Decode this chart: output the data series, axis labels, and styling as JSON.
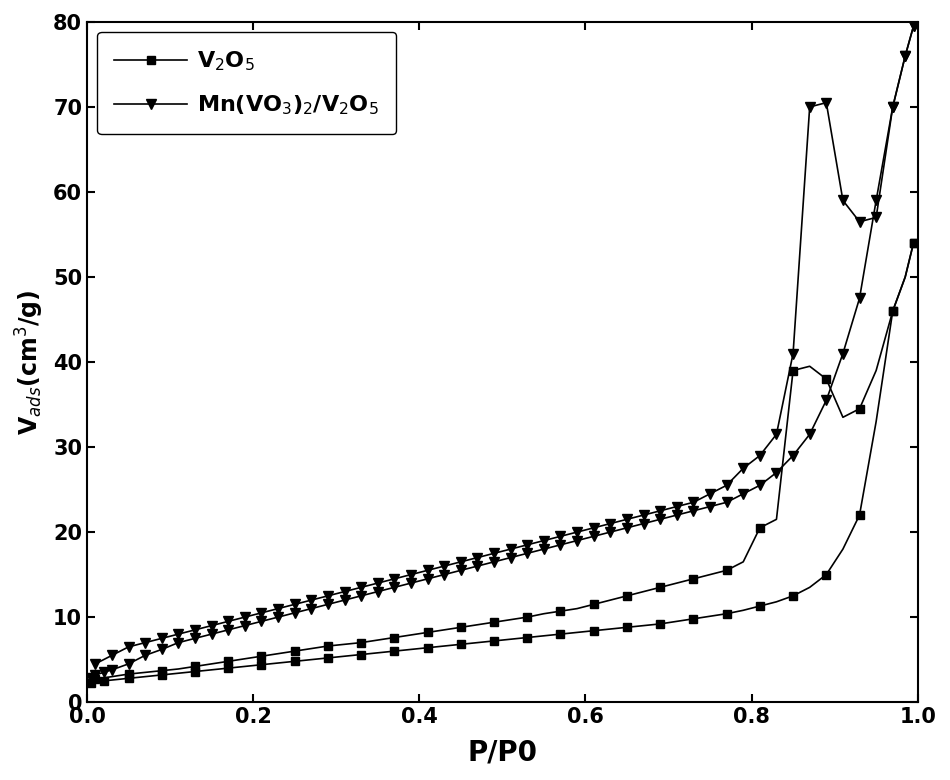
{
  "xlabel": "P/P0",
  "ylabel": "V$_{ads}$(cm$^3$/g)",
  "xlim": [
    0.0,
    1.0
  ],
  "ylim": [
    0,
    80
  ],
  "yticks": [
    0,
    10,
    20,
    30,
    40,
    50,
    60,
    70,
    80
  ],
  "xticks": [
    0.0,
    0.2,
    0.4,
    0.6,
    0.8,
    1.0
  ],
  "legend1_label": "V$_2$O$_5$",
  "legend2_label": "Mn(VO$_3$)$_2$/V$_2$O$_5$",
  "line_color": "black",
  "marker1": "s",
  "marker2": "v",
  "figsize": [
    9.5,
    7.8
  ],
  "dpi": 100,
  "v2o5_ads_x": [
    0.005,
    0.01,
    0.02,
    0.03,
    0.05,
    0.07,
    0.09,
    0.11,
    0.13,
    0.15,
    0.17,
    0.19,
    0.21,
    0.23,
    0.25,
    0.27,
    0.29,
    0.31,
    0.33,
    0.35,
    0.37,
    0.39,
    0.41,
    0.43,
    0.45,
    0.47,
    0.49,
    0.51,
    0.53,
    0.55,
    0.57,
    0.59,
    0.61,
    0.63,
    0.65,
    0.67,
    0.69,
    0.71,
    0.73,
    0.75,
    0.77,
    0.79,
    0.81,
    0.83,
    0.85,
    0.87,
    0.89,
    0.91,
    0.93,
    0.95,
    0.97,
    0.985,
    0.995
  ],
  "v2o5_ads_y": [
    2.2,
    2.4,
    2.5,
    2.6,
    2.8,
    3.0,
    3.2,
    3.4,
    3.6,
    3.8,
    4.0,
    4.2,
    4.4,
    4.6,
    4.8,
    5.0,
    5.2,
    5.4,
    5.6,
    5.8,
    6.0,
    6.2,
    6.4,
    6.6,
    6.8,
    7.0,
    7.2,
    7.4,
    7.6,
    7.8,
    8.0,
    8.2,
    8.4,
    8.6,
    8.8,
    9.0,
    9.2,
    9.5,
    9.8,
    10.1,
    10.4,
    10.8,
    11.3,
    11.8,
    12.5,
    13.5,
    15.0,
    18.0,
    22.0,
    33.0,
    46.0,
    50.0,
    54.0
  ],
  "v2o5_des_x": [
    0.995,
    0.985,
    0.97,
    0.95,
    0.93,
    0.91,
    0.89,
    0.87,
    0.85,
    0.83,
    0.81,
    0.79,
    0.77,
    0.75,
    0.73,
    0.71,
    0.69,
    0.67,
    0.65,
    0.63,
    0.61,
    0.59,
    0.57,
    0.55,
    0.53,
    0.51,
    0.49,
    0.47,
    0.45,
    0.43,
    0.41,
    0.39,
    0.37,
    0.35,
    0.33,
    0.31,
    0.29,
    0.27,
    0.25,
    0.23,
    0.21,
    0.19,
    0.17,
    0.15,
    0.13,
    0.11,
    0.09,
    0.07,
    0.05,
    0.03,
    0.01
  ],
  "v2o5_des_y": [
    54.0,
    50.0,
    46.0,
    39.0,
    34.5,
    33.5,
    38.0,
    39.5,
    39.0,
    21.5,
    20.5,
    16.5,
    15.5,
    15.0,
    14.5,
    14.0,
    13.5,
    13.0,
    12.5,
    12.0,
    11.5,
    11.0,
    10.7,
    10.4,
    10.0,
    9.7,
    9.4,
    9.1,
    8.8,
    8.5,
    8.2,
    7.9,
    7.6,
    7.3,
    7.0,
    6.8,
    6.6,
    6.3,
    6.0,
    5.7,
    5.4,
    5.1,
    4.8,
    4.5,
    4.2,
    3.9,
    3.7,
    3.5,
    3.3,
    3.0,
    2.7
  ],
  "mn_ads_x": [
    0.005,
    0.01,
    0.02,
    0.03,
    0.05,
    0.07,
    0.09,
    0.11,
    0.13,
    0.15,
    0.17,
    0.19,
    0.21,
    0.23,
    0.25,
    0.27,
    0.29,
    0.31,
    0.33,
    0.35,
    0.37,
    0.39,
    0.41,
    0.43,
    0.45,
    0.47,
    0.49,
    0.51,
    0.53,
    0.55,
    0.57,
    0.59,
    0.61,
    0.63,
    0.65,
    0.67,
    0.69,
    0.71,
    0.73,
    0.75,
    0.77,
    0.79,
    0.81,
    0.83,
    0.85,
    0.87,
    0.89,
    0.91,
    0.93,
    0.95,
    0.97,
    0.985,
    0.995
  ],
  "mn_ads_y": [
    2.8,
    3.2,
    3.5,
    3.8,
    4.5,
    5.5,
    6.2,
    7.0,
    7.5,
    8.0,
    8.5,
    9.0,
    9.5,
    10.0,
    10.5,
    11.0,
    11.5,
    12.0,
    12.5,
    13.0,
    13.5,
    14.0,
    14.5,
    15.0,
    15.5,
    16.0,
    16.5,
    17.0,
    17.5,
    18.0,
    18.5,
    19.0,
    19.5,
    20.0,
    20.5,
    21.0,
    21.5,
    22.0,
    22.5,
    23.0,
    23.5,
    24.5,
    25.5,
    27.0,
    29.0,
    31.5,
    35.5,
    41.0,
    47.5,
    59.0,
    70.0,
    76.0,
    79.5
  ],
  "mn_des_x": [
    0.995,
    0.985,
    0.97,
    0.95,
    0.93,
    0.91,
    0.89,
    0.87,
    0.85,
    0.83,
    0.81,
    0.79,
    0.77,
    0.75,
    0.73,
    0.71,
    0.69,
    0.67,
    0.65,
    0.63,
    0.61,
    0.59,
    0.57,
    0.55,
    0.53,
    0.51,
    0.49,
    0.47,
    0.45,
    0.43,
    0.41,
    0.39,
    0.37,
    0.35,
    0.33,
    0.31,
    0.29,
    0.27,
    0.25,
    0.23,
    0.21,
    0.19,
    0.17,
    0.15,
    0.13,
    0.11,
    0.09,
    0.07,
    0.05,
    0.03,
    0.01
  ],
  "mn_des_y": [
    79.5,
    76.0,
    70.0,
    57.0,
    56.5,
    59.0,
    70.5,
    70.0,
    41.0,
    31.5,
    29.0,
    27.5,
    25.5,
    24.5,
    23.5,
    23.0,
    22.5,
    22.0,
    21.5,
    21.0,
    20.5,
    20.0,
    19.5,
    19.0,
    18.5,
    18.0,
    17.5,
    17.0,
    16.5,
    16.0,
    15.5,
    15.0,
    14.5,
    14.0,
    13.5,
    13.0,
    12.5,
    12.0,
    11.5,
    11.0,
    10.5,
    10.0,
    9.5,
    9.0,
    8.5,
    8.0,
    7.5,
    7.0,
    6.5,
    5.5,
    4.5
  ]
}
